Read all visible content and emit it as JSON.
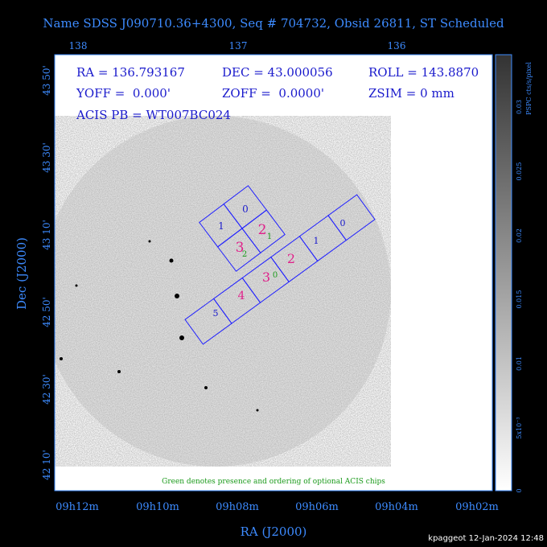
{
  "header": {
    "title": "Name SDSS J090710.36+4300, Seq # 704732, Obsid 26811, ST Scheduled"
  },
  "top_axis": {
    "ticks": [
      "138",
      "137",
      "136"
    ]
  },
  "info": {
    "ra": "RA = 136.793167",
    "dec": "DEC = 43.000056",
    "roll": "ROLL = 143.8870",
    "yoff": "YOFF =  0.000'",
    "zoff": "ZOFF =  0.0000'",
    "zsim": "ZSIM = 0 mm",
    "acis_pb": "ACIS PB = WT007BC024"
  },
  "y_axis": {
    "label": "Dec (J2000)",
    "ticks": [
      "43 50'",
      "43 30'",
      "43 10'",
      "42 50'",
      "42 30'",
      "42 10'"
    ]
  },
  "x_axis": {
    "label": "RA (J2000)",
    "ticks": [
      "09h12m",
      "09h10m",
      "09h08m",
      "09h06m",
      "09h04m",
      "09h02m"
    ]
  },
  "colorbar": {
    "label": "PSPC cts/s/pixel",
    "ticks": [
      "0.03",
      "0.025",
      "0.02",
      "0.015",
      "0.01",
      "5x10⁻³",
      "0"
    ]
  },
  "i_array": {
    "chips": [
      "0",
      "1",
      "2",
      "3"
    ],
    "optional": [
      "1",
      "2"
    ]
  },
  "s_array": {
    "chips": [
      "0",
      "1",
      "2",
      "3",
      "4",
      "5"
    ],
    "optional": [
      "0"
    ]
  },
  "note": "Green denotes presence and ordering of optional ACIS chips",
  "footer": "kpaggeot 12-Jan-2024 12:48"
}
